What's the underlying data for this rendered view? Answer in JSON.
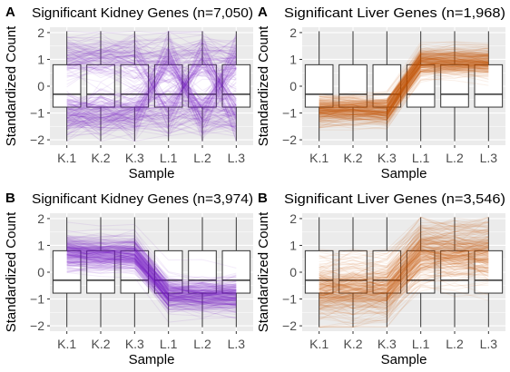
{
  "figure": {
    "x_label": "Sample",
    "y_label": "Standardized Count",
    "samples": [
      "K.1",
      "K.2",
      "K.3",
      "L.1",
      "L.2",
      "L.3"
    ],
    "y_ticks": [
      -2,
      -1,
      0,
      1,
      2
    ],
    "ylim": [
      -2.2,
      2.2
    ]
  },
  "colors": {
    "kidney": "#7b1fc8",
    "liver": "#c85a08",
    "panel_bg": "#ebebeb",
    "grid": "#ffffff",
    "box_fill": "#ffffff",
    "box_line": "#333333"
  },
  "chart_data": [
    {
      "type": "boxplot-parallel-coordinates",
      "panel_letter": "A",
      "title": "Significant Kidney Genes (n=7,050)",
      "xlabel": "Sample",
      "ylabel": "Standardized Count",
      "ylim": [
        -2.2,
        2.2
      ],
      "color_key": "kidney",
      "categories": [
        "K.1",
        "K.2",
        "K.3",
        "L.1",
        "L.2",
        "L.3"
      ],
      "box_stats": [
        {
          "q1": -0.78,
          "median": -0.3,
          "q3": 0.8,
          "whisker_low": -2.05,
          "whisker_high": 2.05
        },
        {
          "q1": -0.78,
          "median": -0.3,
          "q3": 0.8,
          "whisker_low": -2.05,
          "whisker_high": 2.05
        },
        {
          "q1": -0.78,
          "median": -0.3,
          "q3": 0.8,
          "whisker_low": -2.05,
          "whisker_high": 2.05
        },
        {
          "q1": -0.78,
          "median": -0.3,
          "q3": 0.8,
          "whisker_low": -2.05,
          "whisker_high": 2.05
        },
        {
          "q1": -0.78,
          "median": -0.3,
          "q3": 0.8,
          "whisker_low": -2.05,
          "whisker_high": 2.05
        },
        {
          "q1": -0.78,
          "median": -0.3,
          "q3": 0.8,
          "whisker_low": -2.05,
          "whisker_high": 2.05
        }
      ],
      "line_pattern": "mixed profiles spanning full range at every sample"
    },
    {
      "type": "boxplot-parallel-coordinates",
      "panel_letter": "A",
      "title": "Significant Liver Genes (n=1,968)",
      "xlabel": "Sample",
      "ylabel": "Standardized Count",
      "ylim": [
        -2.2,
        2.2
      ],
      "color_key": "liver",
      "categories": [
        "K.1",
        "K.2",
        "K.3",
        "L.1",
        "L.2",
        "L.3"
      ],
      "box_stats": [
        {
          "q1": -0.78,
          "median": -0.3,
          "q3": 0.8,
          "whisker_low": -2.05,
          "whisker_high": 2.05
        },
        {
          "q1": -0.78,
          "median": -0.3,
          "q3": 0.8,
          "whisker_low": -2.05,
          "whisker_high": 2.05
        },
        {
          "q1": -0.78,
          "median": -0.3,
          "q3": 0.8,
          "whisker_low": -2.05,
          "whisker_high": 2.05
        },
        {
          "q1": -0.78,
          "median": -0.3,
          "q3": 0.8,
          "whisker_low": -2.05,
          "whisker_high": 2.05
        },
        {
          "q1": -0.78,
          "median": -0.3,
          "q3": 0.8,
          "whisker_low": -2.05,
          "whisker_high": 2.05
        },
        {
          "q1": -0.78,
          "median": -0.3,
          "q3": 0.8,
          "whisker_low": -2.05,
          "whisker_high": 2.05
        }
      ],
      "profile_center": [
        -0.9,
        -0.9,
        -0.9,
        0.9,
        0.9,
        0.9
      ],
      "profile_spread": 0.25
    },
    {
      "type": "boxplot-parallel-coordinates",
      "panel_letter": "B",
      "title": "Significant Kidney Genes (n=3,974)",
      "xlabel": "Sample",
      "ylabel": "Standardized Count",
      "ylim": [
        -2.2,
        2.2
      ],
      "color_key": "kidney",
      "categories": [
        "K.1",
        "K.2",
        "K.3",
        "L.1",
        "L.2",
        "L.3"
      ],
      "box_stats": [
        {
          "q1": -0.78,
          "median": -0.3,
          "q3": 0.8,
          "whisker_low": -2.05,
          "whisker_high": 2.05
        },
        {
          "q1": -0.78,
          "median": -0.3,
          "q3": 0.8,
          "whisker_low": -2.05,
          "whisker_high": 2.05
        },
        {
          "q1": -0.78,
          "median": -0.3,
          "q3": 0.8,
          "whisker_low": -2.05,
          "whisker_high": 2.05
        },
        {
          "q1": -0.78,
          "median": -0.3,
          "q3": 0.8,
          "whisker_low": -2.05,
          "whisker_high": 2.05
        },
        {
          "q1": -0.78,
          "median": -0.3,
          "q3": 0.8,
          "whisker_low": -2.05,
          "whisker_high": 2.05
        },
        {
          "q1": -0.78,
          "median": -0.3,
          "q3": 0.8,
          "whisker_low": -2.05,
          "whisker_high": 2.05
        }
      ],
      "profile_center": [
        0.75,
        0.7,
        0.7,
        -0.8,
        -0.85,
        -0.85
      ],
      "profile_spread": 0.3
    },
    {
      "type": "boxplot-parallel-coordinates",
      "panel_letter": "B",
      "title": "Significant Liver Genes (n=3,546)",
      "xlabel": "Sample",
      "ylabel": "Standardized Count",
      "ylim": [
        -2.2,
        2.2
      ],
      "color_key": "liver",
      "categories": [
        "K.1",
        "K.2",
        "K.3",
        "L.1",
        "L.2",
        "L.3"
      ],
      "box_stats": [
        {
          "q1": -0.78,
          "median": -0.3,
          "q3": 0.8,
          "whisker_low": -2.05,
          "whisker_high": 2.05
        },
        {
          "q1": -0.78,
          "median": -0.3,
          "q3": 0.8,
          "whisker_low": -2.05,
          "whisker_high": 2.05
        },
        {
          "q1": -0.78,
          "median": -0.3,
          "q3": 0.8,
          "whisker_low": -2.05,
          "whisker_high": 2.05
        },
        {
          "q1": -0.78,
          "median": -0.3,
          "q3": 0.8,
          "whisker_low": -2.05,
          "whisker_high": 2.05
        },
        {
          "q1": -0.78,
          "median": -0.3,
          "q3": 0.8,
          "whisker_low": -2.05,
          "whisker_high": 2.05
        },
        {
          "q1": -0.78,
          "median": -0.3,
          "q3": 0.8,
          "whisker_low": -2.05,
          "whisker_high": 2.05
        }
      ],
      "profile_center": [
        -0.7,
        -0.7,
        -0.65,
        0.75,
        0.75,
        0.75
      ],
      "profile_spread": 0.5
    }
  ]
}
